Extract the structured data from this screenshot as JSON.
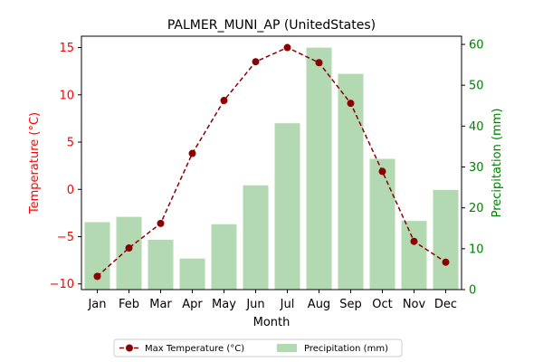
{
  "chart_data": {
    "type": "bar+line",
    "title": "PALMER_MUNI_AP (UnitedStates)",
    "xlabel": "Month",
    "ylabel_left": "Temperature (°C)",
    "ylabel_right": "Precipitation (mm)",
    "categories": [
      "Jan",
      "Feb",
      "Mar",
      "Apr",
      "May",
      "Jun",
      "Jul",
      "Aug",
      "Sep",
      "Oct",
      "Nov",
      "Dec"
    ],
    "ylim_left": [
      -10.6,
      16.2
    ],
    "yticks_left": [
      -10,
      -5,
      0,
      5,
      10,
      15
    ],
    "ylim_right": [
      0,
      62
    ],
    "yticks_right": [
      0,
      10,
      20,
      30,
      40,
      50,
      60
    ],
    "series": [
      {
        "name": "Max Temperature (°C)",
        "type": "line",
        "axis": "left",
        "color": "#8b0000",
        "values": [
          -9.2,
          -6.2,
          -3.6,
          3.8,
          9.4,
          13.5,
          15.0,
          13.4,
          9.1,
          1.9,
          -5.5,
          -7.7
        ]
      },
      {
        "name": "Precipitation (mm)",
        "type": "bar",
        "axis": "right",
        "color": "#b2d9b2",
        "values": [
          16.5,
          17.8,
          12.2,
          7.6,
          16.0,
          25.5,
          40.7,
          59.2,
          52.8,
          32.0,
          16.8,
          24.4
        ]
      }
    ],
    "left_axis_color": "#ff0000",
    "right_axis_color": "#008000",
    "grid": false,
    "legend_position": "bottom-center"
  }
}
